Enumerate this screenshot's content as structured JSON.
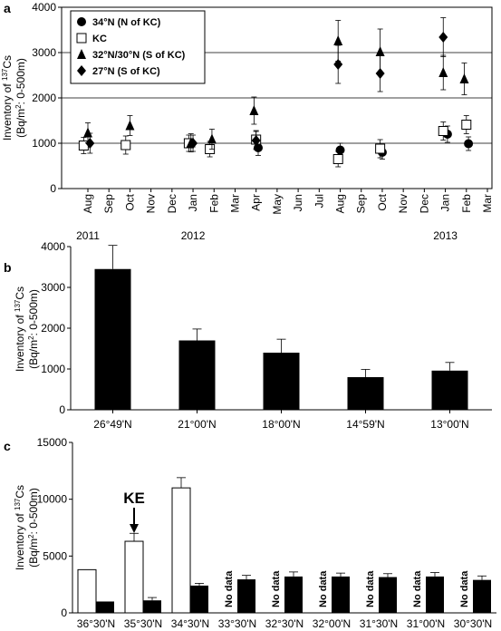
{
  "chart_data": [
    {
      "panel": "a",
      "type": "scatter",
      "ylabel_line1": "Inventory of 137Cs",
      "ylabel_line2": "(Bq/m2: 0-500m)",
      "ylim": [
        0,
        4000
      ],
      "yticks": [
        0,
        1000,
        2000,
        3000,
        4000
      ],
      "grid_y": [
        1000,
        2000,
        3000
      ],
      "x_months": [
        "Aug",
        "Sep",
        "Oct",
        "Nov",
        "Dec",
        "Jan",
        "Feb",
        "Mar",
        "Apr",
        "May",
        "Jun",
        "Jul",
        "Aug",
        "Sep",
        "Oct",
        "Nov",
        "Dec",
        "Jan",
        "Feb",
        "Mar"
      ],
      "x_years": [
        {
          "label": "2011",
          "month_index": 0
        },
        {
          "label": "2012",
          "month_index": 5
        },
        {
          "label": "2013",
          "month_index": 17
        }
      ],
      "legend_placement": "top-left",
      "series": [
        {
          "name": "34°N (N of KC)",
          "marker": "circle",
          "points": [
            {
              "x": 8.1,
              "y": 900,
              "err": 170
            },
            {
              "x": 12.0,
              "y": 850,
              "err": 150
            },
            {
              "x": 14.0,
              "y": 800,
              "err": 150
            },
            {
              "x": 17.1,
              "y": 1200,
              "err": 180
            },
            {
              "x": 18.1,
              "y": 990,
              "err": 150
            }
          ]
        },
        {
          "name": "KC",
          "marker": "square",
          "points": [
            {
              "x": -0.2,
              "y": 950,
              "err": 180
            },
            {
              "x": 1.8,
              "y": 960,
              "err": 200
            },
            {
              "x": 4.8,
              "y": 1000,
              "err": 180
            },
            {
              "x": 5.8,
              "y": 870,
              "err": 170
            },
            {
              "x": 8.0,
              "y": 1080,
              "err": 200
            },
            {
              "x": 11.9,
              "y": 650,
              "err": 170
            },
            {
              "x": 13.9,
              "y": 880,
              "err": 200
            },
            {
              "x": 16.9,
              "y": 1270,
              "err": 200
            },
            {
              "x": 18.0,
              "y": 1410,
              "err": 200
            }
          ]
        },
        {
          "name": "32°N/30°N (S of KC)",
          "marker": "triangle",
          "points": [
            {
              "x": 0.0,
              "y": 1230,
              "err": 220
            },
            {
              "x": 2.0,
              "y": 1390,
              "err": 220
            },
            {
              "x": 4.9,
              "y": 1010,
              "err": 200
            },
            {
              "x": 5.9,
              "y": 1090,
              "err": 220
            },
            {
              "x": 7.9,
              "y": 1720,
              "err": 300
            },
            {
              "x": 11.9,
              "y": 3260,
              "err": 450
            },
            {
              "x": 13.9,
              "y": 3020,
              "err": 500
            },
            {
              "x": 16.9,
              "y": 2560,
              "err": 380
            },
            {
              "x": 17.9,
              "y": 2420,
              "err": 350
            }
          ]
        },
        {
          "name": "27°N (S of KC)",
          "marker": "diamond",
          "points": [
            {
              "x": 0.1,
              "y": 1000,
              "err": 220
            },
            {
              "x": 5.0,
              "y": 1000,
              "err": 180
            },
            {
              "x": 8.0,
              "y": 1060,
              "err": 200
            },
            {
              "x": 11.9,
              "y": 2740,
              "err": 420
            },
            {
              "x": 13.9,
              "y": 2540,
              "err": 400
            },
            {
              "x": 16.9,
              "y": 3340,
              "err": 430
            }
          ]
        }
      ]
    },
    {
      "panel": "b",
      "type": "bar",
      "ylabel_line1": "Inventory of 137Cs",
      "ylabel_line2": "(Bq/m2: 0-500m)",
      "ylim": [
        0,
        4000
      ],
      "yticks": [
        0,
        1000,
        2000,
        3000,
        4000
      ],
      "categories": [
        "26°49'N",
        "21°00'N",
        "18°00'N",
        "14°59'N",
        "13°00'N"
      ],
      "values": [
        3450,
        1700,
        1400,
        800,
        960
      ],
      "errors": [
        580,
        280,
        330,
        190,
        200
      ]
    },
    {
      "panel": "c",
      "type": "bar",
      "ylabel_line1": "Inventory of 137Cs",
      "ylabel_line2": "(Bq/m2: 0-500m)",
      "ylim": [
        0,
        15000
      ],
      "yticks": [
        0,
        5000,
        10000,
        15000
      ],
      "categories": [
        "36°30'N",
        "35°30'N",
        "34°30'N",
        "33°30'N",
        "32°30'N",
        "32°00'N",
        "31°30'N",
        "31°00'N",
        "30°30'N"
      ],
      "series": [
        {
          "style": "open",
          "values": [
            3800,
            6300,
            11000,
            null,
            null,
            null,
            null,
            null,
            null
          ],
          "errors": [
            0,
            700,
            900,
            null,
            null,
            null,
            null,
            null,
            null
          ]
        },
        {
          "style": "filled",
          "values": [
            1000,
            1100,
            2400,
            2950,
            3200,
            3200,
            3150,
            3200,
            2900
          ],
          "errors": [
            0,
            250,
            200,
            350,
            400,
            300,
            300,
            350,
            350
          ]
        }
      ],
      "no_data_label": "No data",
      "annotation": {
        "text": "KE",
        "category_index": 1
      }
    }
  ]
}
